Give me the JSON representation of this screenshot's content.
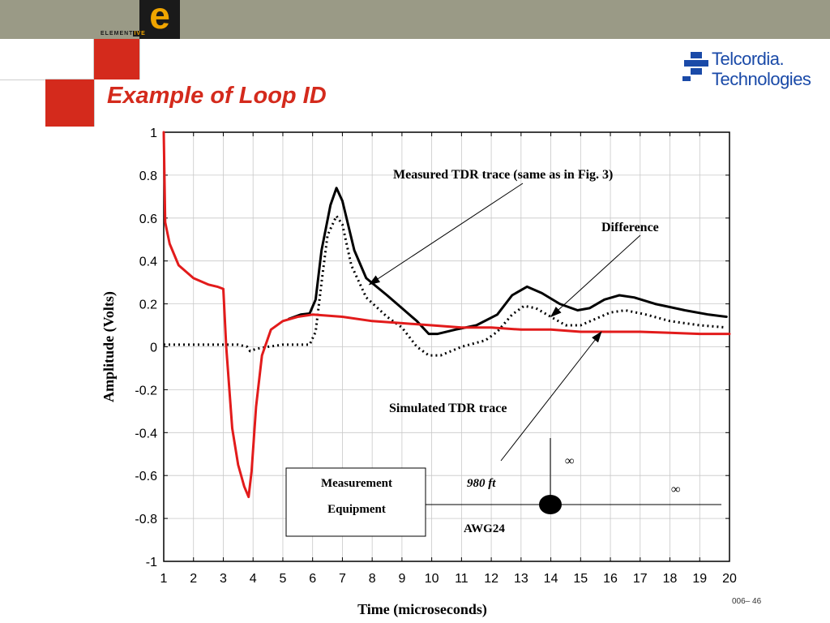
{
  "slide": {
    "title": "Example of Loop ID",
    "logo_letter": "e",
    "logo_text_main": "ELEMENT",
    "logo_text_accent": "IVE",
    "brand_line1": "Telcordia.",
    "brand_line2": "Technologies",
    "footer": "006– 46",
    "colors": {
      "top_bar": "#9a9a86",
      "accent_red": "#d42a1c",
      "logo_orange": "#f0a500",
      "brand_blue": "#1a4aa8"
    }
  },
  "chart_data": {
    "type": "line",
    "xlabel": "Time (microseconds)",
    "ylabel": "Amplitude (Volts)",
    "xlim": [
      1,
      20
    ],
    "ylim": [
      -1,
      1
    ],
    "xticks": [
      1,
      2,
      3,
      4,
      5,
      6,
      7,
      8,
      9,
      10,
      11,
      12,
      13,
      14,
      15,
      16,
      17,
      18,
      19,
      20
    ],
    "yticks": [
      1,
      0.8,
      0.6,
      0.4,
      0.2,
      0,
      -0.2,
      -0.4,
      -0.6,
      -0.8,
      -1
    ],
    "ytick_labels": [
      "1",
      "0.8",
      "0.6",
      "0.4",
      "0.2",
      "0",
      "-0.2",
      "-0.4",
      "-0.6",
      "-0.8",
      "-1"
    ],
    "grid": true,
    "series": [
      {
        "name": "Measured TDR trace",
        "style": "solid",
        "color": "#000000",
        "points": [
          [
            5.2,
            0.13
          ],
          [
            5.6,
            0.15
          ],
          [
            5.9,
            0.155
          ],
          [
            6.1,
            0.22
          ],
          [
            6.3,
            0.45
          ],
          [
            6.6,
            0.66
          ],
          [
            6.8,
            0.74
          ],
          [
            7.0,
            0.68
          ],
          [
            7.4,
            0.45
          ],
          [
            7.8,
            0.32
          ],
          [
            8.5,
            0.24
          ],
          [
            9.0,
            0.18
          ],
          [
            9.5,
            0.12
          ],
          [
            9.9,
            0.06
          ],
          [
            10.2,
            0.06
          ],
          [
            10.8,
            0.08
          ],
          [
            11.5,
            0.1
          ],
          [
            12.2,
            0.15
          ],
          [
            12.7,
            0.24
          ],
          [
            13.2,
            0.28
          ],
          [
            13.7,
            0.25
          ],
          [
            14.3,
            0.2
          ],
          [
            14.9,
            0.17
          ],
          [
            15.3,
            0.18
          ],
          [
            15.8,
            0.22
          ],
          [
            16.3,
            0.24
          ],
          [
            16.8,
            0.23
          ],
          [
            17.5,
            0.2
          ],
          [
            18.5,
            0.17
          ],
          [
            19.3,
            0.15
          ],
          [
            19.9,
            0.14
          ]
        ]
      },
      {
        "name": "Difference",
        "style": "dotted",
        "color": "#000000",
        "points": [
          [
            1.0,
            0.01
          ],
          [
            2.0,
            0.01
          ],
          [
            3.0,
            0.01
          ],
          [
            3.5,
            0.01
          ],
          [
            3.8,
            0.0
          ],
          [
            3.9,
            -0.02
          ],
          [
            4.1,
            -0.01
          ],
          [
            4.5,
            0.0
          ],
          [
            5.0,
            0.01
          ],
          [
            5.9,
            0.01
          ],
          [
            6.1,
            0.07
          ],
          [
            6.3,
            0.3
          ],
          [
            6.5,
            0.52
          ],
          [
            6.8,
            0.61
          ],
          [
            7.0,
            0.57
          ],
          [
            7.3,
            0.38
          ],
          [
            7.8,
            0.23
          ],
          [
            8.5,
            0.14
          ],
          [
            9.0,
            0.09
          ],
          [
            9.5,
            0.0
          ],
          [
            9.9,
            -0.04
          ],
          [
            10.3,
            -0.04
          ],
          [
            11.0,
            0.0
          ],
          [
            11.8,
            0.03
          ],
          [
            12.2,
            0.07
          ],
          [
            12.7,
            0.15
          ],
          [
            13.1,
            0.19
          ],
          [
            13.5,
            0.18
          ],
          [
            14.0,
            0.14
          ],
          [
            14.5,
            0.1
          ],
          [
            15.0,
            0.1
          ],
          [
            15.5,
            0.13
          ],
          [
            16.0,
            0.16
          ],
          [
            16.5,
            0.17
          ],
          [
            17.2,
            0.15
          ],
          [
            18.0,
            0.12
          ],
          [
            19.0,
            0.1
          ],
          [
            19.9,
            0.09
          ]
        ]
      },
      {
        "name": "Simulated TDR trace",
        "style": "solid",
        "color": "#e21b1b",
        "points": [
          [
            1.0,
            1.0
          ],
          [
            1.05,
            0.58
          ],
          [
            1.2,
            0.48
          ],
          [
            1.5,
            0.38
          ],
          [
            2.0,
            0.32
          ],
          [
            2.5,
            0.29
          ],
          [
            2.8,
            0.28
          ],
          [
            3.0,
            0.27
          ],
          [
            3.1,
            0.0
          ],
          [
            3.3,
            -0.38
          ],
          [
            3.5,
            -0.55
          ],
          [
            3.7,
            -0.65
          ],
          [
            3.85,
            -0.7
          ],
          [
            3.95,
            -0.58
          ],
          [
            4.1,
            -0.28
          ],
          [
            4.3,
            -0.04
          ],
          [
            4.6,
            0.08
          ],
          [
            5.0,
            0.12
          ],
          [
            5.5,
            0.14
          ],
          [
            6.0,
            0.15
          ],
          [
            7.0,
            0.14
          ],
          [
            8.0,
            0.12
          ],
          [
            9.0,
            0.11
          ],
          [
            10.0,
            0.1
          ],
          [
            11.0,
            0.09
          ],
          [
            12.0,
            0.09
          ],
          [
            13.0,
            0.08
          ],
          [
            14.0,
            0.08
          ],
          [
            15.0,
            0.07
          ],
          [
            16.0,
            0.07
          ],
          [
            17.0,
            0.07
          ],
          [
            18.0,
            0.065
          ],
          [
            19.0,
            0.06
          ],
          [
            20.0,
            0.06
          ]
        ]
      }
    ],
    "annotations": [
      {
        "text": "Measured TDR trace (same as in Fig. 3)",
        "arrow_to": [
          7.9,
          0.29
        ]
      },
      {
        "text": "Difference",
        "arrow_to": [
          14.0,
          0.14
        ]
      },
      {
        "text": "Simulated TDR trace",
        "arrow_to": [
          15.7,
          0.07
        ]
      }
    ],
    "inset_diagram": {
      "box_line1": "Measurement",
      "box_line2": "Equipment",
      "length_label": "980 ft",
      "gauge_label": "AWG24",
      "open_end_1": "∞",
      "open_end_2": "∞"
    }
  }
}
